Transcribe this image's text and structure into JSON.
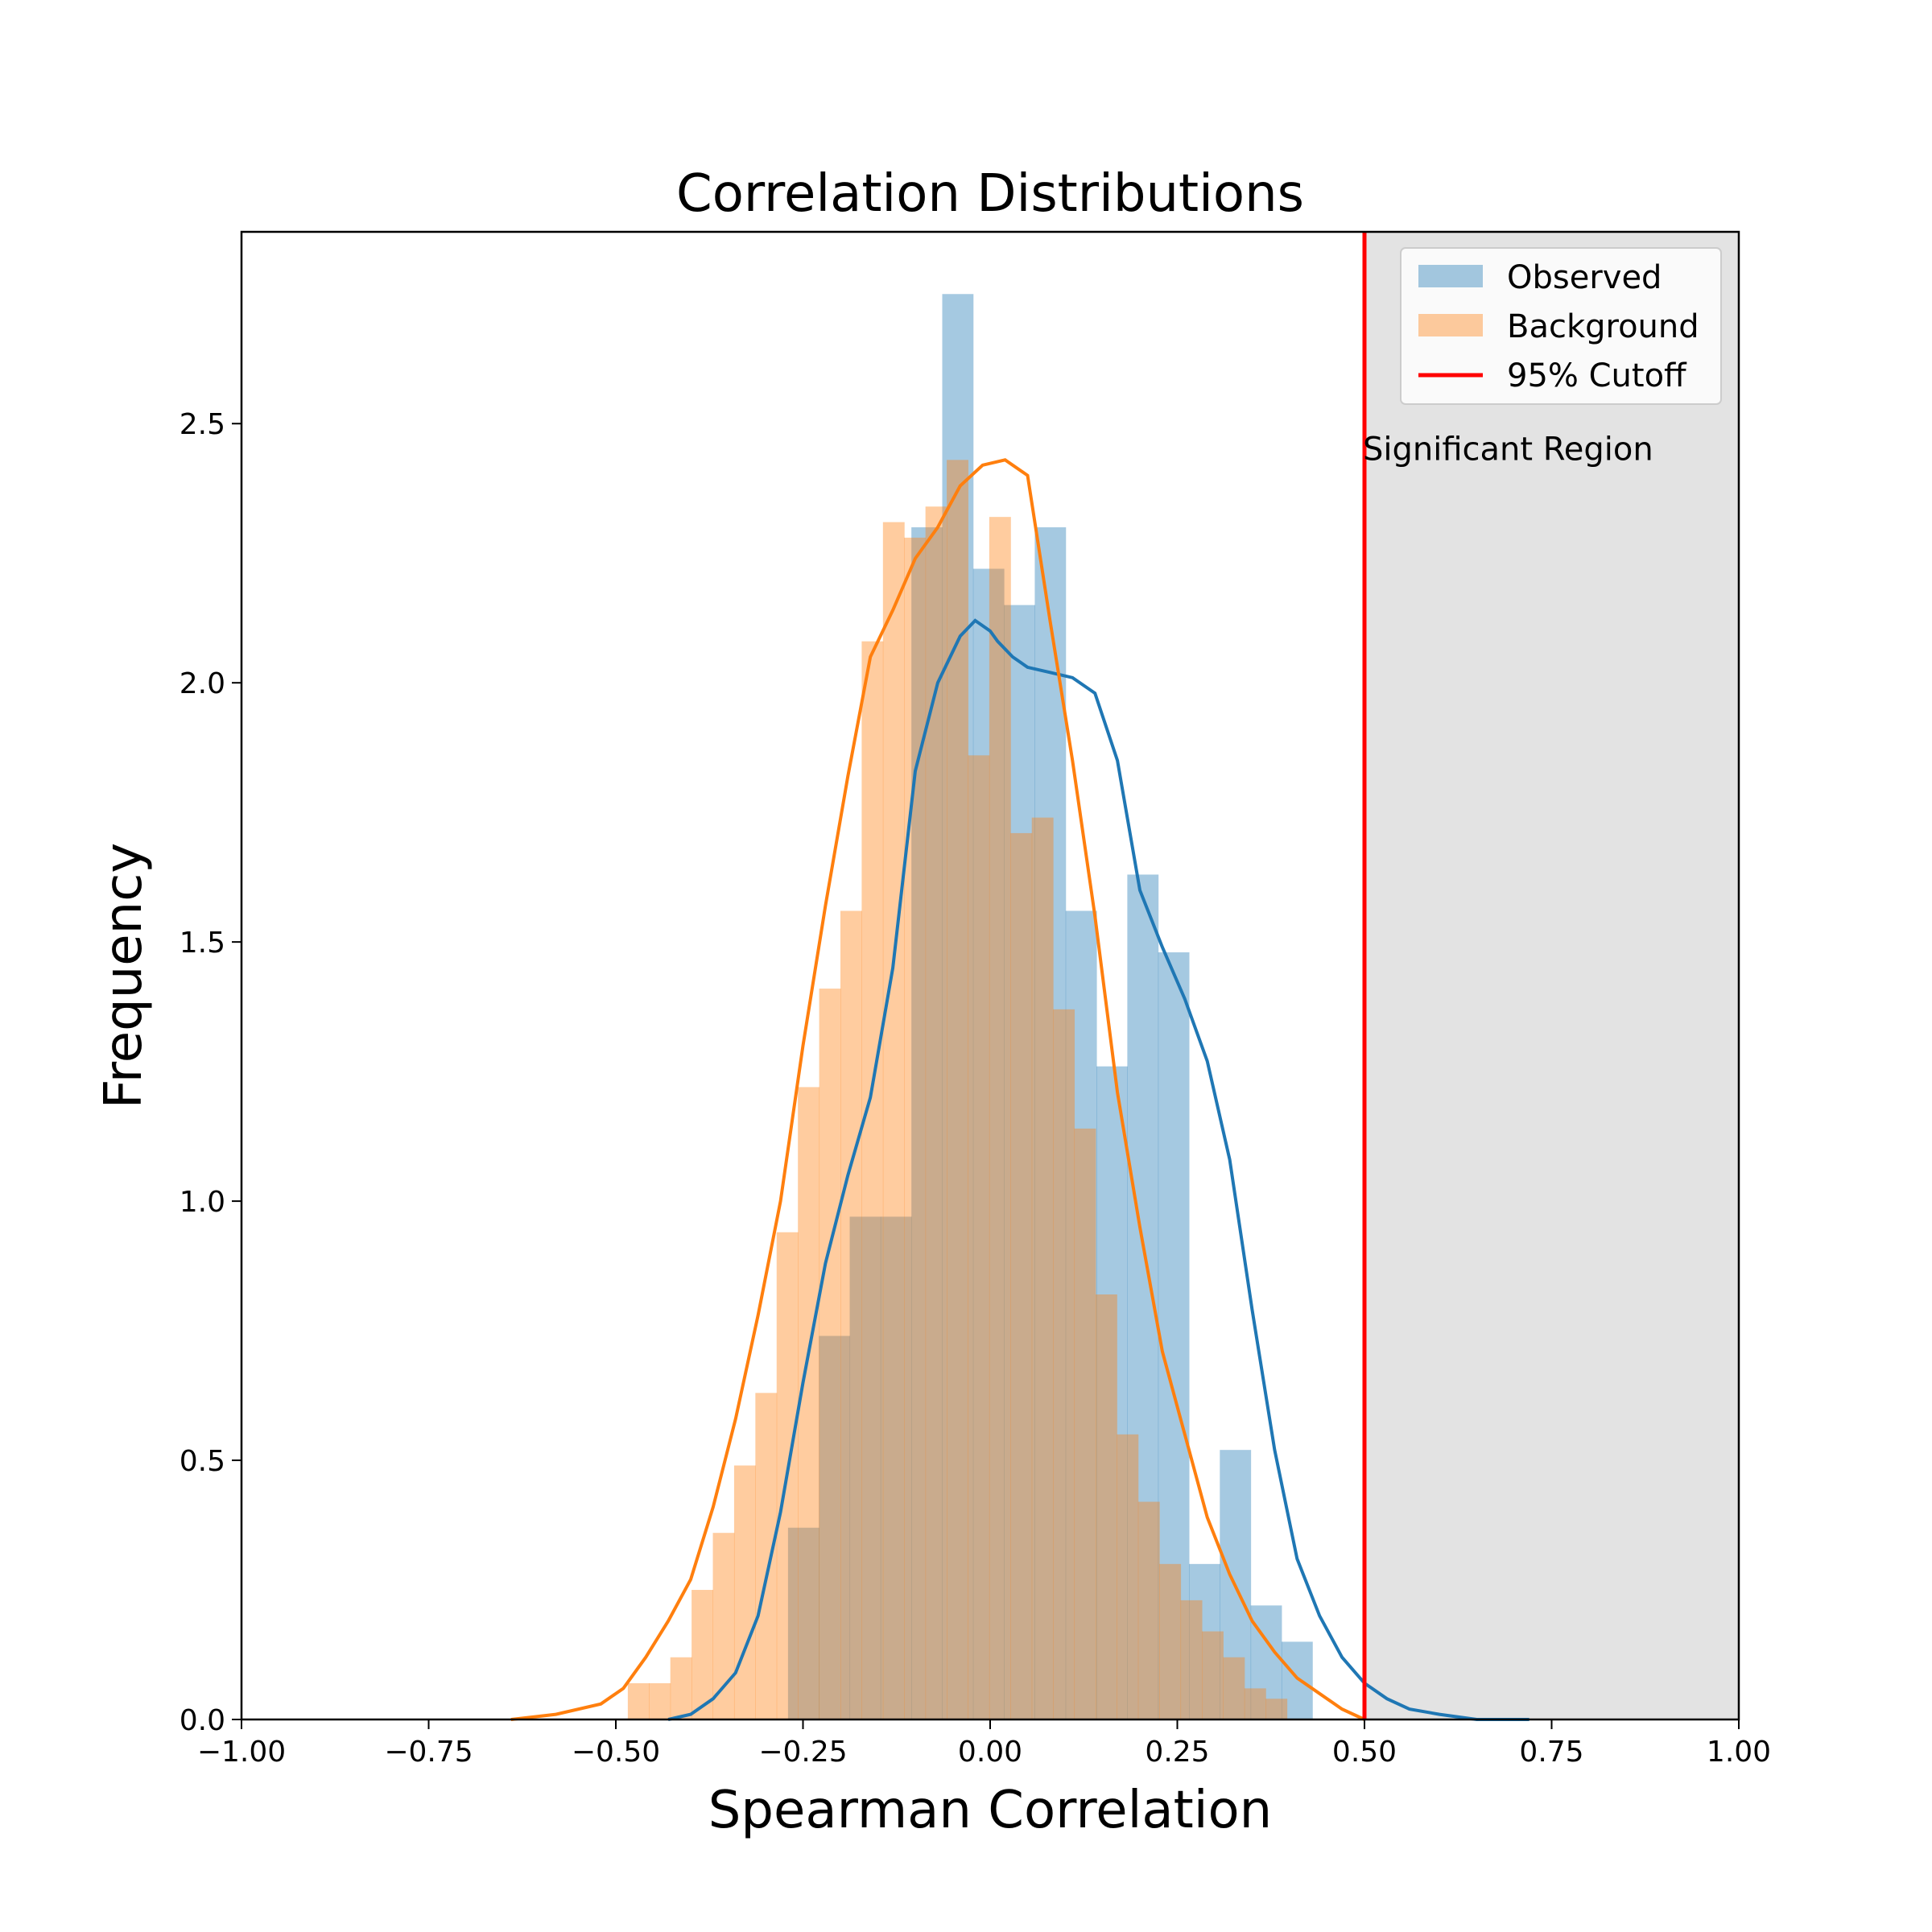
{
  "chart_data": {
    "type": "bar",
    "title": "Correlation Distributions",
    "xlabel": "Spearman Correlation",
    "ylabel": "Frequency",
    "xlim": [
      -1.0,
      1.0
    ],
    "ylim": [
      0,
      2.87
    ],
    "x_ticks": [
      "−1.00",
      "−0.75",
      "−0.50",
      "−0.25",
      "0.00",
      "0.25",
      "0.50",
      "0.75",
      "1.00"
    ],
    "x_tick_values": [
      -1.0,
      -0.75,
      -0.5,
      -0.25,
      0.0,
      0.25,
      0.5,
      0.75,
      1.0
    ],
    "y_ticks": [
      "0.0",
      "0.5",
      "1.0",
      "1.5",
      "2.0",
      "2.5"
    ],
    "y_tick_values": [
      0,
      0.5,
      1.0,
      1.5,
      2.0,
      2.5
    ],
    "grid": false,
    "legend_position": "top-right",
    "bin_width": 0.0412,
    "series": [
      {
        "name": "Observed",
        "kind": "histogram",
        "color": "#1f77b4",
        "alpha": 0.4,
        "bins_start": -0.27,
        "values": [
          0.37,
          0.74,
          0.97,
          0.97,
          2.3,
          2.75,
          2.22,
          2.15,
          2.3,
          1.56,
          1.26,
          1.63,
          1.48,
          0.3,
          0.52,
          0.22,
          0.15
        ]
      },
      {
        "name": "Background",
        "kind": "histogram",
        "color": "#ff7f0e",
        "alpha": 0.4,
        "bins_start": -0.484,
        "bin_width": 0.0284,
        "values": [
          0.07,
          0.07,
          0.12,
          0.25,
          0.36,
          0.49,
          0.63,
          0.94,
          1.22,
          1.41,
          1.56,
          2.08,
          2.31,
          2.28,
          2.34,
          2.43,
          1.86,
          2.32,
          1.71,
          1.74,
          1.37,
          1.14,
          0.82,
          0.55,
          0.42,
          0.3,
          0.23,
          0.17,
          0.12,
          0.06,
          0.04
        ]
      },
      {
        "name": "Observed KDE",
        "kind": "line",
        "color": "#1f77b4",
        "x": [
          -0.43,
          -0.4,
          -0.37,
          -0.34,
          -0.31,
          -0.28,
          -0.25,
          -0.22,
          -0.19,
          -0.16,
          -0.13,
          -0.1,
          -0.07,
          -0.04,
          -0.02,
          0.0,
          0.01,
          0.03,
          0.05,
          0.08,
          0.11,
          0.14,
          0.17,
          0.2,
          0.23,
          0.26,
          0.29,
          0.32,
          0.35,
          0.38,
          0.41,
          0.44,
          0.47,
          0.5,
          0.53,
          0.56,
          0.6,
          0.65,
          0.72
        ],
        "y": [
          0.0,
          0.01,
          0.04,
          0.09,
          0.2,
          0.4,
          0.65,
          0.88,
          1.05,
          1.2,
          1.45,
          1.83,
          2.0,
          2.09,
          2.12,
          2.1,
          2.08,
          2.05,
          2.03,
          2.02,
          2.01,
          1.98,
          1.85,
          1.6,
          1.49,
          1.39,
          1.27,
          1.08,
          0.79,
          0.52,
          0.31,
          0.2,
          0.12,
          0.07,
          0.04,
          0.02,
          0.01,
          0.0,
          0.0
        ]
      },
      {
        "name": "Background KDE",
        "kind": "line",
        "color": "#ff7f0e",
        "x": [
          -0.64,
          -0.58,
          -0.52,
          -0.49,
          -0.46,
          -0.43,
          -0.4,
          -0.37,
          -0.34,
          -0.31,
          -0.28,
          -0.25,
          -0.22,
          -0.19,
          -0.16,
          -0.13,
          -0.1,
          -0.07,
          -0.04,
          -0.01,
          0.02,
          0.05,
          0.08,
          0.11,
          0.14,
          0.17,
          0.2,
          0.23,
          0.26,
          0.29,
          0.32,
          0.35,
          0.38,
          0.41,
          0.44,
          0.47,
          0.5
        ],
        "y": [
          0.0,
          0.01,
          0.03,
          0.06,
          0.12,
          0.19,
          0.27,
          0.41,
          0.58,
          0.78,
          1.0,
          1.3,
          1.57,
          1.82,
          2.05,
          2.14,
          2.24,
          2.3,
          2.38,
          2.42,
          2.43,
          2.4,
          2.12,
          1.85,
          1.55,
          1.21,
          0.95,
          0.71,
          0.55,
          0.39,
          0.28,
          0.19,
          0.13,
          0.08,
          0.05,
          0.02,
          0.0
        ]
      }
    ],
    "cutoff": {
      "name": "95% Cutoff",
      "x": 0.5,
      "color": "#ff0000"
    },
    "significant_region": {
      "x_from": 0.5,
      "x_to": 1.0,
      "color": "#e3e3e3",
      "label": "Significant Region"
    },
    "legend": [
      {
        "label": "Observed",
        "kind": "patch",
        "color": "#1f77b4"
      },
      {
        "label": "Background",
        "kind": "patch",
        "color": "#ff7f0e"
      },
      {
        "label": "95% Cutoff",
        "kind": "line",
        "color": "#ff0000"
      }
    ]
  }
}
